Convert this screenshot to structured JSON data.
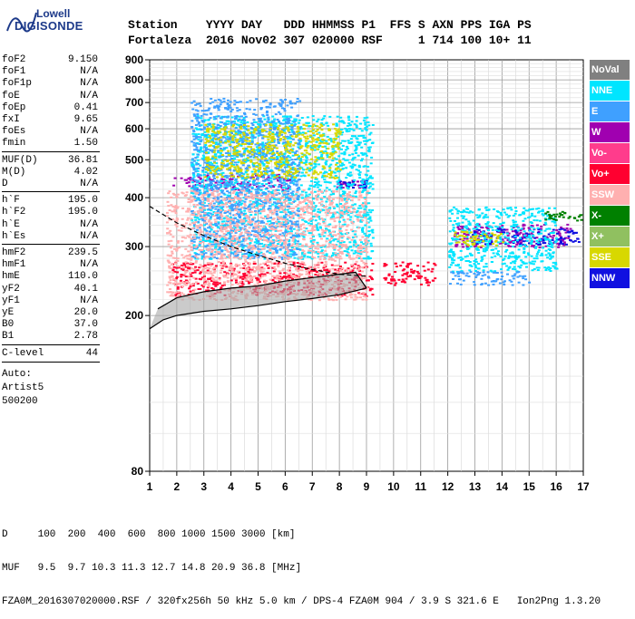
{
  "logo": {
    "line1": "Lowell",
    "line2": "DIGISONDE"
  },
  "header": {
    "row1": "Station    YYYY DAY   DDD HHMMSS P1  FFS S AXN PPS IGA PS",
    "row2": "Fortaleza  2016 Nov02 307 020000 RSF     1 714 100 10+ 11"
  },
  "params": [
    {
      "k": "foF2",
      "v": "9.150"
    },
    {
      "k": "foF1",
      "v": "N/A"
    },
    {
      "k": "foF1p",
      "v": "N/A"
    },
    {
      "k": "foE",
      "v": "N/A"
    },
    {
      "k": "foEp",
      "v": "0.41"
    },
    {
      "k": "fxI",
      "v": "9.65"
    },
    {
      "k": "foEs",
      "v": "N/A"
    },
    {
      "k": "fmin",
      "v": "1.50"
    },
    {
      "k": "MUF(D)",
      "v": "36.81",
      "sep": true
    },
    {
      "k": "M(D)",
      "v": "4.02"
    },
    {
      "k": "D",
      "v": "N/A"
    },
    {
      "k": "h`F",
      "v": "195.0",
      "sep": true
    },
    {
      "k": "h`F2",
      "v": "195.0"
    },
    {
      "k": "h`E",
      "v": "N/A"
    },
    {
      "k": "h`Es",
      "v": "N/A"
    },
    {
      "k": "hmF2",
      "v": "239.5",
      "sep": true
    },
    {
      "k": "hmF1",
      "v": "N/A"
    },
    {
      "k": "hmE",
      "v": "110.0"
    },
    {
      "k": "yF2",
      "v": "40.1"
    },
    {
      "k": "yF1",
      "v": "N/A"
    },
    {
      "k": "yE",
      "v": "20.0"
    },
    {
      "k": "B0",
      "v": "37.0"
    },
    {
      "k": "B1",
      "v": "2.78"
    },
    {
      "k": "C-level",
      "v": "44",
      "sep": true
    }
  ],
  "auto": {
    "l1": "Auto:",
    "l2": "Artist5",
    "l3": "500200"
  },
  "legend": [
    {
      "name": "NoVal",
      "bg": "#808080",
      "fg": "#ffffff"
    },
    {
      "name": "NNE",
      "bg": "#00e5ff",
      "fg": "#ffffff"
    },
    {
      "name": "E",
      "bg": "#3fa0ff",
      "fg": "#ffffff"
    },
    {
      "name": "W",
      "bg": "#a000b0",
      "fg": "#ffffff"
    },
    {
      "name": "Vo-",
      "bg": "#ff3c8c",
      "fg": "#ffffff"
    },
    {
      "name": "Vo+",
      "bg": "#ff0030",
      "fg": "#ffffff"
    },
    {
      "name": "SSW",
      "bg": "#ffb0b0",
      "fg": "#ffffff"
    },
    {
      "name": "X-",
      "bg": "#008000",
      "fg": "#ffffff"
    },
    {
      "name": "X+",
      "bg": "#90c060",
      "fg": "#ffffff"
    },
    {
      "name": "SSE",
      "bg": "#d8d800",
      "fg": "#ffffff"
    },
    {
      "name": "NNW",
      "bg": "#1010e0",
      "fg": "#ffffff"
    }
  ],
  "footer": {
    "row1": "D     100  200  400  600  800 1000 1500 3000 [km]",
    "row2": "MUF   9.5  9.7 10.3 11.3 12.7 14.8 20.9 36.8 [MHz]",
    "row3": "FZA0M_2016307020000.RSF / 320fx256h 50 kHz 5.0 km / DPS-4 FZA0M 904 / 3.9 S 321.6 E   Ion2Png 1.3.20"
  },
  "chart_data": {
    "type": "scatter",
    "title": "",
    "xlabel": "",
    "ylabel": "",
    "xlim": [
      1,
      17
    ],
    "ylim": [
      80,
      900
    ],
    "y_scale": "log",
    "x_ticks": [
      1,
      2,
      3,
      4,
      5,
      6,
      7,
      8,
      9,
      10,
      11,
      12,
      13,
      14,
      15,
      16,
      17
    ],
    "y_ticks": [
      80,
      200,
      300,
      400,
      500,
      600,
      700,
      800,
      900
    ],
    "grid": true,
    "series": [
      {
        "name": "Vo+",
        "color": "#ff0030",
        "clusters": [
          {
            "f": [
              1.8,
              9.2
            ],
            "h": [
              225,
              275
            ]
          },
          {
            "f": [
              9.6,
              11.5
            ],
            "h": [
              240,
              275
            ]
          }
        ]
      },
      {
        "name": "W",
        "color": "#a000b0",
        "clusters": [
          {
            "f": [
              1.8,
              6.2
            ],
            "h": [
              420,
              460
            ]
          },
          {
            "f": [
              7.8,
              9.0
            ],
            "h": [
              425,
              445
            ]
          },
          {
            "f": [
              12.2,
              16.5
            ],
            "h": [
              300,
              345
            ]
          }
        ]
      },
      {
        "name": "NNW",
        "color": "#1010e0",
        "clusters": [
          {
            "f": [
              7.8,
              9.0
            ],
            "h": [
              425,
              445
            ]
          },
          {
            "f": [
              12.8,
              16.8
            ],
            "h": [
              305,
              335
            ]
          }
        ]
      },
      {
        "name": "NNE",
        "color": "#00e5ff",
        "clusters": [
          {
            "f": [
              2.5,
              9.2
            ],
            "h": [
              280,
              650
            ]
          },
          {
            "f": [
              12.0,
              16.0
            ],
            "h": [
              260,
              380
            ]
          }
        ]
      },
      {
        "name": "E",
        "color": "#3fa0ff",
        "clusters": [
          {
            "f": [
              12.0,
              15.0
            ],
            "h": [
              240,
              260
            ]
          },
          {
            "f": [
              2.5,
              6.5
            ],
            "h": [
              280,
              720
            ]
          }
        ]
      },
      {
        "name": "SSE",
        "color": "#d8d800",
        "clusters": [
          {
            "f": [
              3.0,
              8.0
            ],
            "h": [
              450,
              620
            ]
          },
          {
            "f": [
              12.2,
              14.0
            ],
            "h": [
              300,
              330
            ]
          }
        ]
      },
      {
        "name": "X-",
        "color": "#008000",
        "clusters": [
          {
            "f": [
              15.5,
              17.0
            ],
            "h": [
              350,
              370
            ]
          }
        ]
      },
      {
        "name": "SSW",
        "color": "#ffb0b0",
        "clusters": [
          {
            "f": [
              1.6,
              9.0
            ],
            "h": [
              220,
              420
            ]
          }
        ]
      }
    ],
    "traces": [
      {
        "name": "virtual height curve (dashed)",
        "points": [
          [
            1.0,
            380
          ],
          [
            2.0,
            345
          ],
          [
            3.0,
            320
          ],
          [
            4.0,
            300
          ],
          [
            5.0,
            285
          ],
          [
            6.0,
            272
          ],
          [
            7.0,
            262
          ],
          [
            8.0,
            255
          ],
          [
            9.0,
            252
          ]
        ]
      },
      {
        "name": "O-trace (black)",
        "points": [
          [
            1.3,
            208
          ],
          [
            2.0,
            222
          ],
          [
            3.0,
            230
          ],
          [
            4.0,
            235
          ],
          [
            5.0,
            238
          ],
          [
            6.0,
            245
          ],
          [
            7.0,
            250
          ],
          [
            8.0,
            255
          ],
          [
            8.6,
            258
          ],
          [
            9.0,
            235
          ]
        ]
      },
      {
        "name": "true height profile",
        "points": [
          [
            1.0,
            185
          ],
          [
            1.5,
            195
          ],
          [
            2.0,
            200
          ],
          [
            3.0,
            205
          ],
          [
            4.0,
            208
          ],
          [
            5.0,
            212
          ],
          [
            6.0,
            217
          ],
          [
            7.0,
            221
          ],
          [
            8.0,
            226
          ],
          [
            9.0,
            235
          ]
        ]
      }
    ]
  }
}
